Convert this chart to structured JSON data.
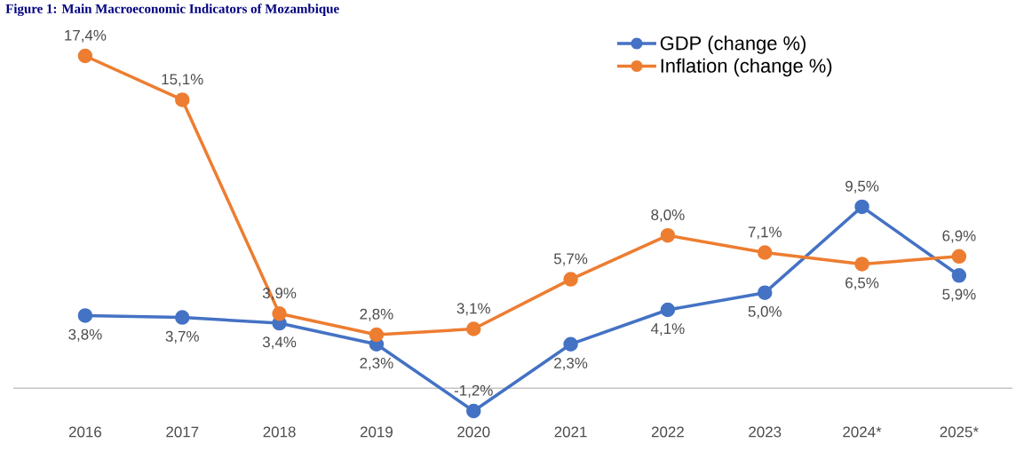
{
  "chart_data": {
    "type": "line",
    "title": "Figure 1: Main Macroeconomic Indicators of Mozambique",
    "categories": [
      "2016",
      "2017",
      "2018",
      "2019",
      "2020",
      "2021",
      "2022",
      "2023",
      "2024*",
      "2025*"
    ],
    "series": [
      {
        "name": "GDP (change %)",
        "color": "#4472c4",
        "values": [
          3.8,
          3.7,
          3.4,
          2.3,
          -1.2,
          2.3,
          4.1,
          5.0,
          9.5,
          5.9
        ],
        "value_labels": [
          "3,8%",
          "3,7%",
          "3,4%",
          "2,3%",
          "-1,2%",
          "2,3%",
          "4,1%",
          "5,0%",
          "9,5%",
          "5,9%"
        ]
      },
      {
        "name": "Inflation (change %)",
        "color": "#ed7d31",
        "values": [
          17.4,
          15.1,
          3.9,
          2.8,
          3.1,
          5.7,
          8.0,
          7.1,
          6.5,
          6.9
        ],
        "value_labels": [
          "17,4%",
          "15,1%",
          "3,9%",
          "2,8%",
          "3,1%",
          "5,7%",
          "8,0%",
          "7,1%",
          "6,5%",
          "6,9%"
        ]
      }
    ],
    "marker": "circle",
    "legend": "top right",
    "grid": false,
    "tick_labels": "x"
  }
}
